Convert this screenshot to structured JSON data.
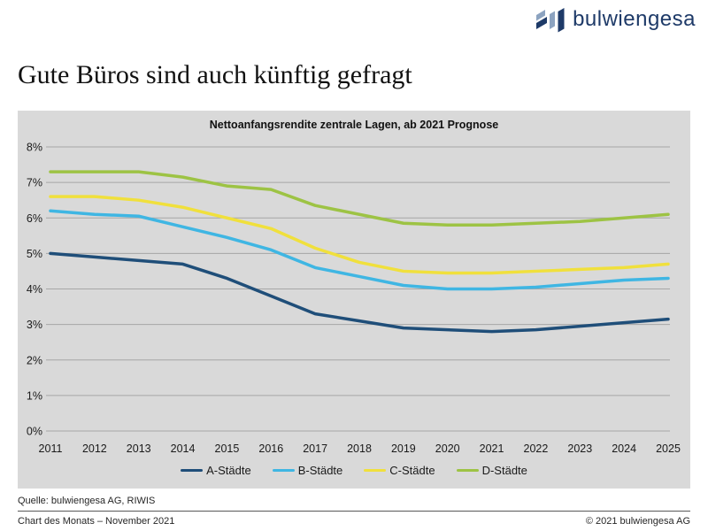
{
  "header": {
    "logo_text": "bulwiengesa",
    "logo_colors": {
      "navy": "#1e3a68",
      "slate": "#8ca3c0"
    }
  },
  "page": {
    "title": "Gute Büros sind auch künftig gefragt"
  },
  "chart_data": {
    "type": "line",
    "title": "Nettoanfangsrendite zentrale Lagen, ab 2021 Prognose",
    "x": [
      2011,
      2012,
      2013,
      2014,
      2015,
      2016,
      2017,
      2018,
      2019,
      2020,
      2021,
      2022,
      2023,
      2024,
      2025
    ],
    "ylim": [
      0,
      8
    ],
    "ytick_step": 1,
    "ytick_suffix": "%",
    "grid": true,
    "legend_position": "bottom",
    "plot_bg": "#d9d9d9",
    "gridline_color": "#a6a6a6",
    "series": [
      {
        "name": "A-Städte",
        "color": "#1f4e79",
        "values": [
          5.0,
          4.9,
          4.8,
          4.7,
          4.3,
          3.8,
          3.3,
          3.1,
          2.9,
          2.85,
          2.8,
          2.85,
          2.95,
          3.05,
          3.15
        ]
      },
      {
        "name": "B-Städte",
        "color": "#3fb6e3",
        "values": [
          6.2,
          6.1,
          6.05,
          5.75,
          5.45,
          5.1,
          4.6,
          4.35,
          4.1,
          4.0,
          4.0,
          4.05,
          4.15,
          4.25,
          4.3
        ]
      },
      {
        "name": "C-Städte",
        "color": "#f0e03c",
        "values": [
          6.6,
          6.6,
          6.5,
          6.3,
          6.0,
          5.7,
          5.15,
          4.75,
          4.5,
          4.45,
          4.45,
          4.5,
          4.55,
          4.6,
          4.7
        ]
      },
      {
        "name": "D-Städte",
        "color": "#9dc344",
        "values": [
          7.3,
          7.3,
          7.3,
          7.15,
          6.9,
          6.8,
          6.35,
          6.1,
          5.85,
          5.8,
          5.8,
          5.85,
          5.9,
          6.0,
          6.1
        ]
      }
    ]
  },
  "footer": {
    "source": "Quelle: bulwiengesa AG, RIWIS",
    "left": "Chart des Monats – November 2021",
    "right": "© 2021 bulwiengesa AG"
  }
}
